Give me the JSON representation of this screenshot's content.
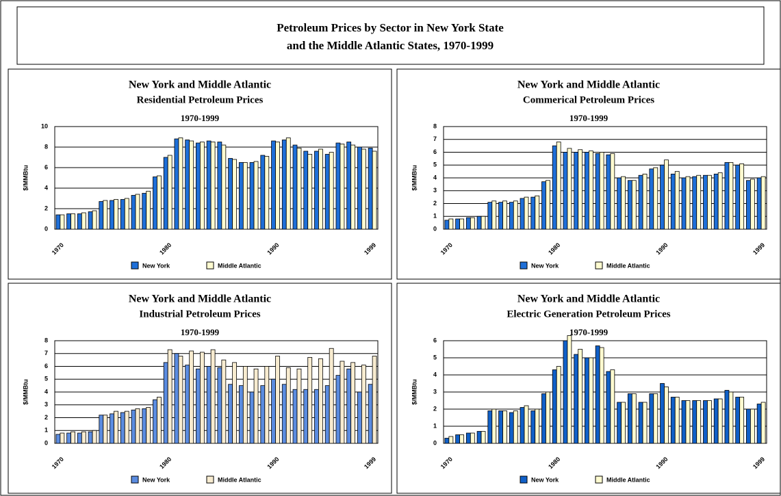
{
  "header": {
    "title_lines": [
      "Petroleum Prices by Sector in New York State",
      "and the Middle Atlantic States, 1970-1999"
    ]
  },
  "chart_data": [
    {
      "type": "bar",
      "title": "New York and Middle Atlantic",
      "subtitle": "Residential Petroleum Prices",
      "years": "1970-1999",
      "y_label": "$/MMBtu",
      "categories": [
        "1970",
        null,
        null,
        null,
        null,
        null,
        null,
        null,
        null,
        null,
        "1980",
        null,
        null,
        null,
        null,
        null,
        null,
        null,
        null,
        null,
        "1990",
        null,
        null,
        null,
        null,
        null,
        null,
        null,
        null,
        "1999"
      ],
      "ylim": [
        0,
        10
      ],
      "yticks": [
        0,
        2,
        4,
        6,
        8,
        10
      ],
      "grid": true,
      "series": [
        {
          "name": "New York",
          "color": "#1e6fd8",
          "values": [
            1.4,
            1.5,
            1.5,
            1.7,
            2.7,
            2.8,
            2.9,
            3.3,
            3.5,
            5.1,
            7.0,
            8.8,
            8.7,
            8.4,
            8.6,
            8.5,
            6.9,
            6.5,
            6.5,
            7.2,
            8.6,
            8.7,
            8.2,
            7.6,
            7.6,
            7.3,
            8.4,
            8.5,
            8.0,
            7.9
          ]
        },
        {
          "name": "Middle Atlantic",
          "color": "#fffbd0",
          "values": [
            1.4,
            1.5,
            1.6,
            1.8,
            2.8,
            2.9,
            3.0,
            3.4,
            3.7,
            5.2,
            7.2,
            8.9,
            8.6,
            8.5,
            8.5,
            8.2,
            6.8,
            6.5,
            6.6,
            7.1,
            8.5,
            8.9,
            7.9,
            7.3,
            7.8,
            7.5,
            8.3,
            8.2,
            7.8,
            7.6
          ]
        }
      ]
    },
    {
      "type": "bar",
      "title": "New York and Middle Atlantic",
      "subtitle": "Commerical Petroleum Prices",
      "years": "1970-1999",
      "y_label": "$/MMBtu",
      "categories": [
        "1970",
        null,
        null,
        null,
        null,
        null,
        null,
        null,
        null,
        null,
        "1980",
        null,
        null,
        null,
        null,
        null,
        null,
        null,
        null,
        null,
        "1990",
        null,
        null,
        null,
        null,
        null,
        null,
        null,
        null,
        "1999"
      ],
      "ylim": [
        0,
        8
      ],
      "yticks": [
        0,
        1,
        2,
        3,
        4,
        5,
        6,
        7,
        8
      ],
      "grid": true,
      "series": [
        {
          "name": "New York",
          "color": "#1e6fd8",
          "values": [
            0.7,
            0.8,
            0.9,
            1.0,
            2.1,
            2.1,
            2.1,
            2.4,
            2.5,
            3.7,
            6.5,
            6.0,
            6.0,
            6.0,
            5.9,
            5.8,
            4.0,
            3.8,
            4.2,
            4.7,
            5.0,
            4.3,
            4.0,
            4.1,
            4.2,
            4.3,
            5.2,
            5.0,
            3.8,
            4.0
          ]
        },
        {
          "name": "Middle Atlantic",
          "color": "#fffbd0",
          "values": [
            0.8,
            0.8,
            0.9,
            1.0,
            2.2,
            2.2,
            2.2,
            2.5,
            2.6,
            3.8,
            6.8,
            6.3,
            6.2,
            6.1,
            6.0,
            5.9,
            4.1,
            3.8,
            4.3,
            4.8,
            5.4,
            4.5,
            4.1,
            4.2,
            4.2,
            4.4,
            5.2,
            5.1,
            3.9,
            4.1
          ]
        }
      ]
    },
    {
      "type": "bar",
      "title": "New York and Middle Atlantic",
      "subtitle": "Industrial Petroleum Prices",
      "years": "1970-1999",
      "y_label": "$/MMBtu",
      "categories": [
        "1970",
        null,
        null,
        null,
        null,
        null,
        null,
        null,
        null,
        null,
        "1980",
        null,
        null,
        null,
        null,
        null,
        null,
        null,
        null,
        null,
        "1990",
        null,
        null,
        null,
        null,
        null,
        null,
        null,
        null,
        "1999"
      ],
      "ylim": [
        0,
        8
      ],
      "yticks": [
        0,
        1,
        2,
        3,
        4,
        5,
        6,
        7,
        8
      ],
      "grid": true,
      "series": [
        {
          "name": "New York",
          "color": "#5b8ce0",
          "values": [
            0.7,
            0.8,
            0.8,
            0.9,
            2.2,
            2.3,
            2.4,
            2.6,
            2.7,
            3.4,
            6.3,
            7.0,
            6.1,
            5.8,
            6.0,
            5.9,
            4.6,
            4.5,
            4.0,
            4.5,
            5.0,
            4.6,
            4.2,
            4.2,
            4.2,
            4.5,
            5.3,
            5.8,
            4.0,
            4.6
          ]
        },
        {
          "name": "Middle Atlantic",
          "color": "#f8ecd0",
          "values": [
            0.8,
            0.9,
            0.9,
            1.0,
            2.2,
            2.5,
            2.5,
            2.7,
            2.8,
            3.6,
            7.3,
            6.8,
            7.2,
            7.1,
            7.3,
            6.5,
            6.3,
            6.0,
            5.8,
            6.0,
            6.8,
            5.9,
            5.8,
            6.7,
            6.6,
            7.4,
            6.4,
            6.3,
            6.1,
            6.8
          ]
        }
      ]
    },
    {
      "type": "bar",
      "title": "New York and Middle Atlantic",
      "subtitle": "Electric Generation Petroleum Prices",
      "years": "1970-1999",
      "y_label": "$/MMBtu",
      "categories": [
        "1970",
        null,
        null,
        null,
        null,
        null,
        null,
        null,
        null,
        null,
        "1980",
        null,
        null,
        null,
        null,
        null,
        null,
        null,
        null,
        null,
        "1990",
        null,
        null,
        null,
        null,
        null,
        null,
        null,
        null,
        "1999"
      ],
      "ylim": [
        0,
        6
      ],
      "yticks": [
        0,
        1,
        2,
        3,
        4,
        5,
        6
      ],
      "grid": true,
      "series": [
        {
          "name": "New York",
          "color": "#1060c8",
          "values": [
            0.3,
            0.5,
            0.6,
            0.7,
            1.9,
            1.9,
            1.8,
            2.1,
            1.9,
            2.9,
            4.3,
            6.0,
            5.2,
            5.0,
            5.7,
            4.2,
            2.4,
            2.9,
            2.4,
            2.9,
            3.5,
            2.7,
            2.5,
            2.5,
            2.5,
            2.6,
            3.1,
            2.7,
            2.0,
            2.3
          ]
        },
        {
          "name": "Middle Atlantic",
          "color": "#fffbd0",
          "values": [
            0.4,
            0.5,
            0.6,
            0.7,
            2.0,
            1.9,
            1.9,
            2.2,
            2.0,
            3.0,
            4.5,
            6.3,
            5.5,
            5.0,
            5.6,
            4.3,
            2.4,
            2.9,
            2.4,
            2.9,
            3.3,
            2.7,
            2.5,
            2.5,
            2.5,
            2.6,
            3.0,
            2.7,
            2.0,
            2.4
          ]
        }
      ]
    }
  ]
}
